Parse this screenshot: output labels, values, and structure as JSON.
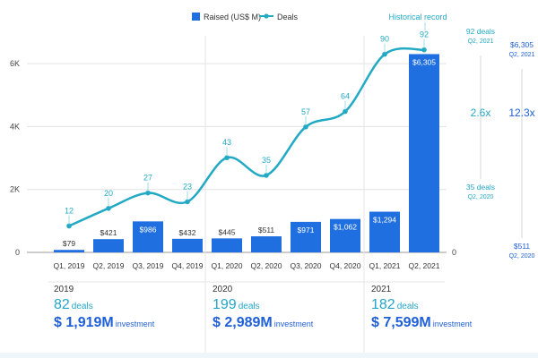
{
  "chart_data": {
    "type": "bar+line",
    "categories": [
      "Q1, 2019",
      "Q2, 2019",
      "Q3, 2019",
      "Q4, 2019",
      "Q1, 2020",
      "Q2, 2020",
      "Q3, 2020",
      "Q4, 2020",
      "Q1, 2021",
      "Q2, 2021"
    ],
    "series": [
      {
        "name": "Raised (US$ M)",
        "type": "bar",
        "axis": "left",
        "color": "#1f6fe0",
        "values": [
          79,
          421,
          986,
          432,
          445,
          511,
          971,
          1062,
          1294,
          6305
        ],
        "labels": [
          "$79",
          "$421",
          "$986",
          "$432",
          "$445",
          "$511",
          "$971",
          "$1,062",
          "$1,294",
          "$6,305"
        ]
      },
      {
        "name": "Deals",
        "type": "line",
        "axis": "right",
        "color": "#22a9c4",
        "values": [
          12,
          20,
          27,
          23,
          43,
          35,
          57,
          64,
          90,
          92
        ]
      }
    ],
    "left_axis": {
      "ticks": [
        0,
        2000,
        4000,
        6000
      ],
      "tick_labels": [
        "0",
        "2K",
        "4K",
        "6K"
      ],
      "ylim": [
        0,
        7000
      ]
    },
    "right_axis": {
      "tick_labels": [
        "0"
      ],
      "ylim": [
        0,
        100
      ]
    },
    "annotation": "Historical record",
    "comparisons": [
      {
        "top_label": "92 deals",
        "top_sub": "Q2, 2021",
        "multiplier": "2.6x",
        "bottom_label": "35 deals",
        "bottom_sub": "Q2, 2020",
        "color": "#22a9c4"
      },
      {
        "top_label": "$6,305",
        "top_sub": "Q2, 2021",
        "multiplier": "12.3x",
        "bottom_label": "$511",
        "bottom_sub": "Q2, 2020",
        "color": "#1f5fd8"
      }
    ]
  },
  "years": [
    {
      "year": "2019",
      "deals": "82",
      "deals_unit": "deals",
      "investment": "$ 1,919M",
      "investment_unit": "investment"
    },
    {
      "year": "2020",
      "deals": "199",
      "deals_unit": "deals",
      "investment": "$ 2,989M",
      "investment_unit": "investment"
    },
    {
      "year": "2021",
      "deals": "182",
      "deals_unit": "deals",
      "investment": "$ 7,599M",
      "investment_unit": "investment"
    }
  ]
}
